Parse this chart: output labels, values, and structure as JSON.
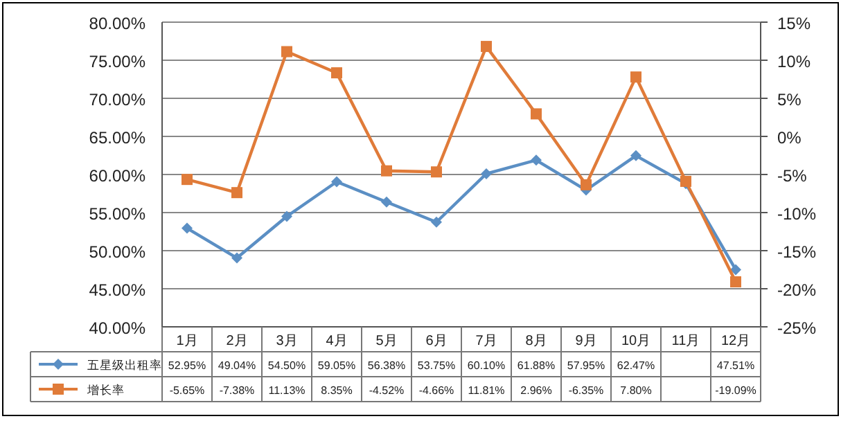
{
  "chart_data": {
    "type": "line",
    "categories": [
      "1月",
      "2月",
      "3月",
      "4月",
      "5月",
      "6月",
      "7月",
      "8月",
      "9月",
      "10月",
      "11月",
      "12月"
    ],
    "series": [
      {
        "name": "五星级出租率",
        "color": "#5b8fc4",
        "marker": "diamond",
        "values": [
          52.95,
          49.04,
          54.5,
          59.05,
          56.38,
          53.75,
          60.1,
          61.88,
          57.95,
          62.47,
          58.8,
          47.51
        ],
        "value_labels": [
          "52.95%",
          "49.04%",
          "54.50%",
          "59.05%",
          "56.38%",
          "53.75%",
          "60.10%",
          "61.88%",
          "57.95%",
          "62.47%",
          null,
          "47.51%"
        ]
      },
      {
        "name": "增长率",
        "color": "#e07b39",
        "marker": "square",
        "axis": "y2",
        "values": [
          -5.65,
          -7.38,
          11.13,
          8.35,
          -4.52,
          -4.66,
          11.81,
          2.96,
          -6.35,
          7.8,
          -5.9,
          -19.09
        ],
        "value_labels": [
          "-5.65%",
          "-7.38%",
          "11.13%",
          "8.35%",
          "-4.52%",
          "-4.66%",
          "11.81%",
          "2.96%",
          "-6.35%",
          "7.80%",
          null,
          "-19.09%"
        ]
      }
    ],
    "ylim": [
      40,
      80
    ],
    "yticks": [
      {
        "value": 40,
        "label": "40.00%"
      },
      {
        "value": 45,
        "label": "45.00%"
      },
      {
        "value": 50,
        "label": "50.00%"
      },
      {
        "value": 55,
        "label": "55.00%"
      },
      {
        "value": 60,
        "label": "60.00%"
      },
      {
        "value": 65,
        "label": "65.00%"
      },
      {
        "value": 70,
        "label": "70.00%"
      },
      {
        "value": 75,
        "label": "75.00%"
      },
      {
        "value": 80,
        "label": "80.00%"
      }
    ],
    "y2lim": [
      -25,
      15
    ],
    "y2ticks": [
      {
        "value": -25,
        "label": "-25%"
      },
      {
        "value": -20,
        "label": "-20%"
      },
      {
        "value": -15,
        "label": "-15%"
      },
      {
        "value": -10,
        "label": "-10%"
      },
      {
        "value": -5,
        "label": "-5%"
      },
      {
        "value": 0,
        "label": "0%"
      },
      {
        "value": 5,
        "label": "5%"
      },
      {
        "value": 10,
        "label": "10%"
      },
      {
        "value": 15,
        "label": "15%"
      }
    ],
    "grid": "y",
    "legend": "bottom",
    "line_style": "solid"
  }
}
